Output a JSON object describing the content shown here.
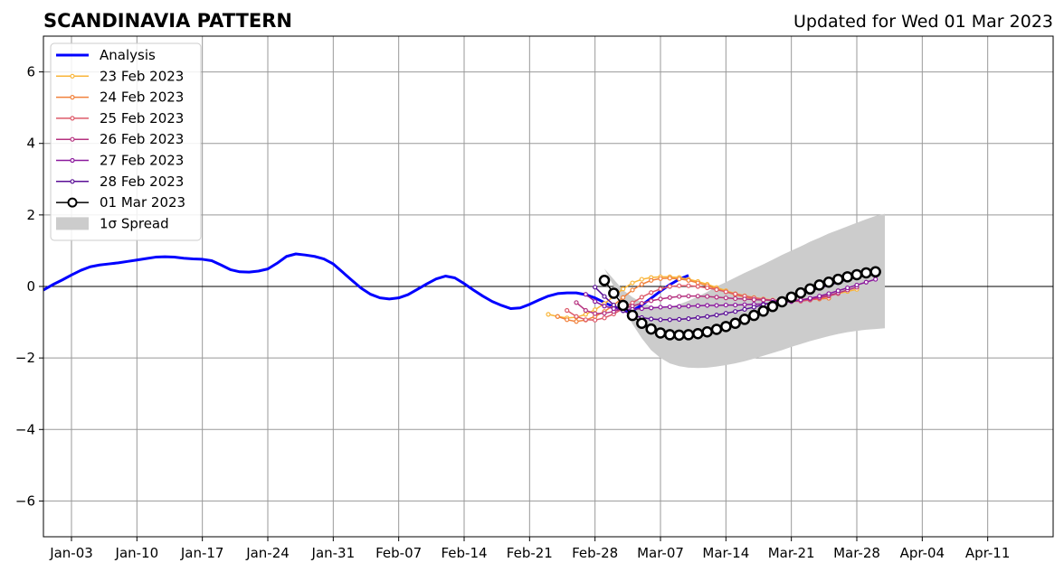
{
  "chart_data": {
    "type": "line",
    "title": "SCANDINAVIA PATTERN",
    "subtitle": "Updated for Wed 01 Mar 2023",
    "xlabel": "",
    "ylabel": "",
    "ylim": [
      -7,
      7
    ],
    "xlim": [
      "2022-12-31",
      "2023-04-18"
    ],
    "grid": true,
    "legend_position": "top-left",
    "y_ticks": [
      -6,
      -4,
      -2,
      0,
      2,
      4,
      6
    ],
    "y_tick_labels": [
      "−6",
      "−4",
      "−2",
      "0",
      "2",
      "4",
      "6"
    ],
    "x_ticks": [
      "2023-01-03",
      "2023-01-10",
      "2023-01-17",
      "2023-01-24",
      "2023-01-31",
      "2023-02-07",
      "2023-02-14",
      "2023-02-21",
      "2023-02-28",
      "2023-03-07",
      "2023-03-14",
      "2023-03-21",
      "2023-03-28",
      "2023-04-04",
      "2023-04-11"
    ],
    "x_tick_labels": [
      "Jan-03",
      "Jan-10",
      "Jan-17",
      "Jan-24",
      "Jan-31",
      "Feb-07",
      "Feb-14",
      "Feb-21",
      "Feb-28",
      "Mar-07",
      "Mar-14",
      "Mar-21",
      "Mar-28",
      "Apr-04",
      "Apr-11"
    ],
    "analysis": {
      "name": "Analysis",
      "color": "#0000ff",
      "start": "2022-12-31",
      "values": [
        -0.1,
        0.05,
        0.18,
        0.32,
        0.45,
        0.55,
        0.6,
        0.63,
        0.66,
        0.7,
        0.74,
        0.78,
        0.82,
        0.83,
        0.82,
        0.79,
        0.77,
        0.76,
        0.72,
        0.6,
        0.47,
        0.41,
        0.4,
        0.43,
        0.49,
        0.65,
        0.84,
        0.91,
        0.88,
        0.84,
        0.77,
        0.63,
        0.4,
        0.17,
        -0.05,
        -0.22,
        -0.32,
        -0.35,
        -0.32,
        -0.23,
        -0.08,
        0.07,
        0.21,
        0.29,
        0.24,
        0.08,
        -0.1,
        -0.27,
        -0.42,
        -0.53,
        -0.62,
        -0.6,
        -0.5,
        -0.38,
        -0.27,
        -0.2,
        -0.18,
        -0.18,
        -0.23,
        -0.32,
        -0.45,
        -0.57,
        -0.68,
        -0.68,
        -0.52,
        -0.33,
        -0.13,
        0.05,
        0.2,
        0.31
      ]
    },
    "forecasts": [
      {
        "name": "23 Feb 2023",
        "color": "#f9b539",
        "start": "2023-02-23",
        "values": [
          -0.78,
          -0.84,
          -0.88,
          -0.86,
          -0.78,
          -0.65,
          -0.48,
          -0.28,
          -0.07,
          0.1,
          0.2,
          0.25,
          0.27,
          0.27,
          0.25,
          0.2,
          0.14,
          0.06,
          -0.03,
          -0.12,
          -0.2,
          -0.26,
          -0.31,
          -0.35,
          -0.38,
          -0.39,
          -0.39,
          -0.37,
          -0.34,
          -0.3,
          -0.25,
          -0.2,
          -0.14,
          -0.08
        ]
      },
      {
        "name": "24 Feb 2023",
        "color": "#f1813b",
        "start": "2023-02-24",
        "values": [
          -0.84,
          -0.93,
          -0.98,
          -0.94,
          -0.84,
          -0.7,
          -0.52,
          -0.31,
          -0.1,
          0.06,
          0.17,
          0.22,
          0.23,
          0.21,
          0.17,
          0.1,
          0.02,
          -0.07,
          -0.15,
          -0.23,
          -0.29,
          -0.34,
          -0.37,
          -0.39,
          -0.4,
          -0.4,
          -0.39,
          -0.37,
          -0.35,
          -0.33
        ]
      },
      {
        "name": "25 Feb 2023",
        "color": "#dd5969",
        "start": "2023-02-25",
        "values": [
          -0.67,
          -0.84,
          -0.93,
          -0.94,
          -0.88,
          -0.77,
          -0.62,
          -0.46,
          -0.3,
          -0.17,
          -0.07,
          0.0,
          0.02,
          0.02,
          0.0,
          -0.04,
          -0.09,
          -0.15,
          -0.21,
          -0.27,
          -0.32,
          -0.36,
          -0.39,
          -0.41,
          -0.42,
          -0.41,
          -0.38,
          -0.33,
          -0.27,
          -0.2
        ]
      },
      {
        "name": "26 Feb 2023",
        "color": "#b5317f",
        "start": "2023-02-26",
        "values": [
          -0.45,
          -0.67,
          -0.76,
          -0.75,
          -0.7,
          -0.62,
          -0.55,
          -0.47,
          -0.4,
          -0.35,
          -0.31,
          -0.28,
          -0.27,
          -0.27,
          -0.28,
          -0.3,
          -0.32,
          -0.34,
          -0.35,
          -0.37,
          -0.38,
          -0.39,
          -0.39,
          -0.39,
          -0.38,
          -0.35,
          -0.31,
          -0.25,
          -0.18,
          -0.1,
          -0.02
        ]
      },
      {
        "name": "27 Feb 2023",
        "color": "#8b199d",
        "start": "2023-02-27",
        "values": [
          -0.22,
          -0.42,
          -0.55,
          -0.62,
          -0.65,
          -0.64,
          -0.62,
          -0.6,
          -0.58,
          -0.57,
          -0.56,
          -0.55,
          -0.54,
          -0.53,
          -0.53,
          -0.52,
          -0.52,
          -0.51,
          -0.5,
          -0.49,
          -0.47,
          -0.45,
          -0.42,
          -0.38,
          -0.33,
          -0.27,
          -0.2,
          -0.12,
          -0.04,
          0.04,
          0.12,
          0.2
        ]
      },
      {
        "name": "28 Feb 2023",
        "color": "#5a0f96",
        "start": "2023-02-28",
        "values": [
          -0.02,
          -0.28,
          -0.52,
          -0.68,
          -0.8,
          -0.87,
          -0.91,
          -0.93,
          -0.93,
          -0.92,
          -0.9,
          -0.87,
          -0.84,
          -0.8,
          -0.75,
          -0.7,
          -0.64,
          -0.58,
          -0.51,
          -0.44,
          -0.37,
          -0.29,
          -0.21,
          -0.13,
          -0.05,
          0.03,
          0.11,
          0.19
        ]
      }
    ],
    "current": {
      "name": "01 Mar 2023",
      "color": "#000000",
      "start": "2023-03-01",
      "values": [
        0.17,
        -0.19,
        -0.53,
        -0.81,
        -1.03,
        -1.19,
        -1.3,
        -1.35,
        -1.36,
        -1.35,
        -1.32,
        -1.27,
        -1.2,
        -1.12,
        -1.03,
        -0.92,
        -0.81,
        -0.69,
        -0.56,
        -0.43,
        -0.3,
        -0.18,
        -0.07,
        0.04,
        0.12,
        0.2,
        0.27,
        0.33,
        0.38,
        0.41
      ]
    },
    "spread": {
      "name": "1σ Spread",
      "color": "#cccccc",
      "start": "2023-03-01",
      "upper": [
        0.5,
        0.2,
        -0.1,
        -0.3,
        -0.45,
        -0.55,
        -0.6,
        -0.58,
        -0.5,
        -0.4,
        -0.28,
        -0.15,
        0.0,
        0.12,
        0.25,
        0.38,
        0.5,
        0.62,
        0.75,
        0.88,
        1.0,
        1.12,
        1.25,
        1.36,
        1.48,
        1.58,
        1.68,
        1.78,
        1.88,
        1.97,
        2.03
      ],
      "lower": [
        0.5,
        0.0,
        -0.55,
        -1.05,
        -1.45,
        -1.78,
        -2.0,
        -2.15,
        -2.23,
        -2.27,
        -2.28,
        -2.27,
        -2.24,
        -2.2,
        -2.15,
        -2.09,
        -2.02,
        -1.94,
        -1.86,
        -1.78,
        -1.69,
        -1.61,
        -1.53,
        -1.46,
        -1.39,
        -1.33,
        -1.28,
        -1.24,
        -1.21,
        -1.19,
        -1.17
      ]
    }
  }
}
